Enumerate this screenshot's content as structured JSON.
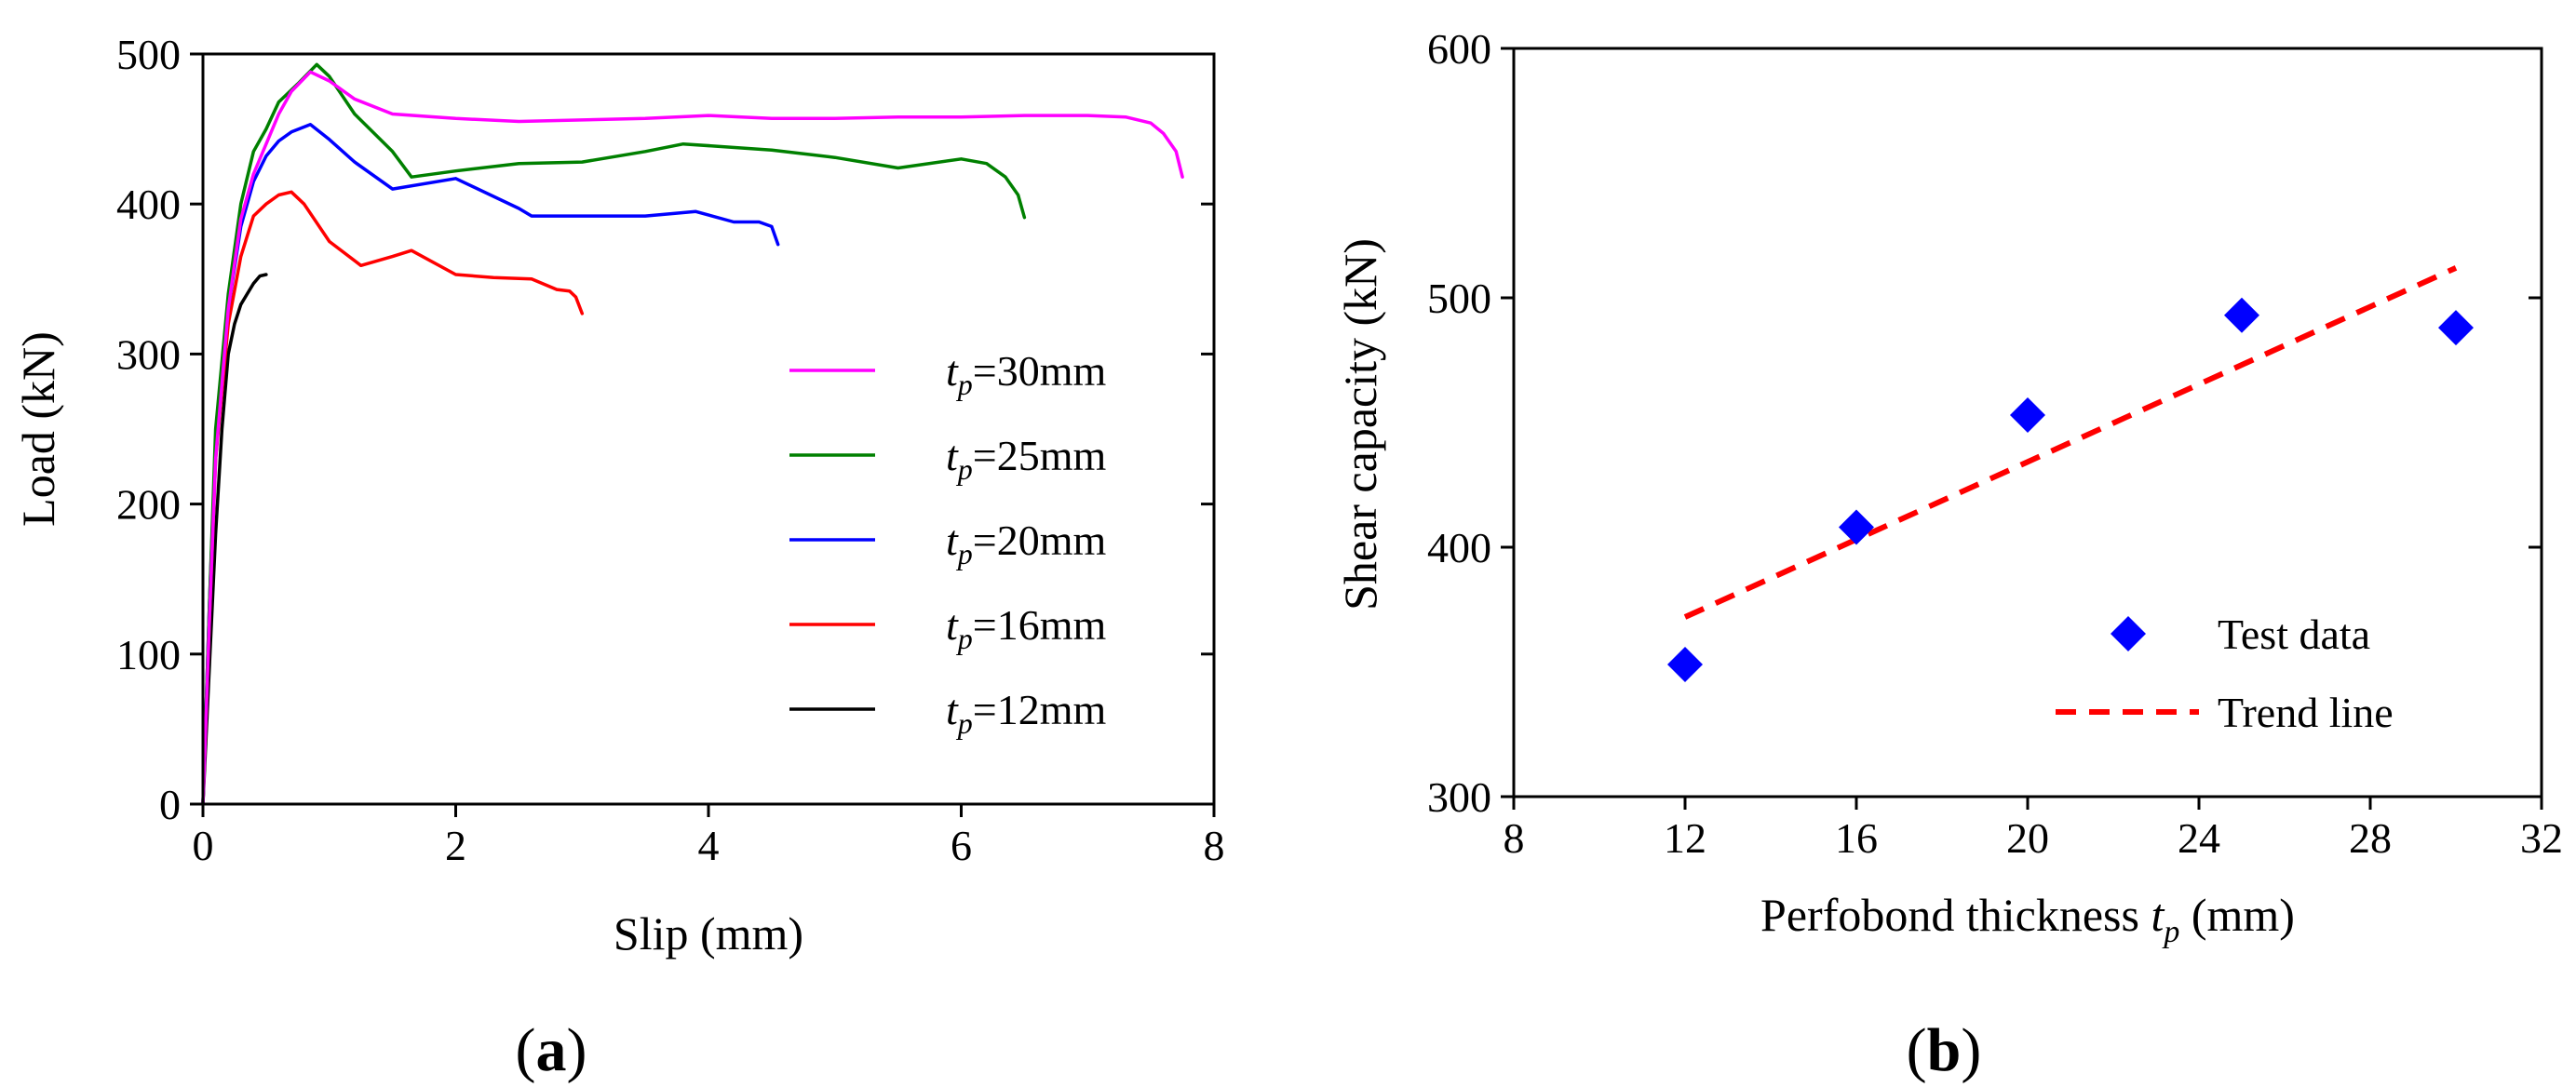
{
  "chart_data": [
    {
      "type": "line",
      "panel": "a",
      "panel_label": {
        "open": "(",
        "letter": "a",
        "close": ")"
      },
      "xlabel": "Slip (mm)",
      "ylabel": "Load (kN)",
      "xlim": [
        0,
        8
      ],
      "ylim": [
        0,
        500
      ],
      "xticks": [
        0,
        2,
        4,
        6,
        8
      ],
      "yticks": [
        0,
        100,
        200,
        300,
        400,
        500
      ],
      "legend_position": "right",
      "series": [
        {
          "name": "t_p=30mm",
          "label_main": "t",
          "label_sub": "p",
          "label_rest": "=30mm",
          "color": "#ff00ff",
          "points": [
            [
              0,
              0
            ],
            [
              0.05,
              120
            ],
            [
              0.1,
              230
            ],
            [
              0.2,
              330
            ],
            [
              0.3,
              390
            ],
            [
              0.4,
              420
            ],
            [
              0.5,
              440
            ],
            [
              0.6,
              460
            ],
            [
              0.7,
              475
            ],
            [
              0.85,
              488
            ],
            [
              1.0,
              482
            ],
            [
              1.2,
              470
            ],
            [
              1.5,
              460
            ],
            [
              2.0,
              457
            ],
            [
              2.5,
              455
            ],
            [
              3.0,
              456
            ],
            [
              3.5,
              457
            ],
            [
              4.0,
              459
            ],
            [
              4.5,
              457
            ],
            [
              5.0,
              457
            ],
            [
              5.5,
              458
            ],
            [
              6.0,
              458
            ],
            [
              6.5,
              459
            ],
            [
              7.0,
              459
            ],
            [
              7.3,
              458
            ],
            [
              7.5,
              454
            ],
            [
              7.6,
              447
            ],
            [
              7.7,
              435
            ],
            [
              7.75,
              418
            ]
          ]
        },
        {
          "name": "t_p=25mm",
          "label_main": "t",
          "label_sub": "p",
          "label_rest": "=25mm",
          "color": "#008000",
          "points": [
            [
              0,
              0
            ],
            [
              0.05,
              130
            ],
            [
              0.1,
              250
            ],
            [
              0.2,
              340
            ],
            [
              0.3,
              400
            ],
            [
              0.4,
              435
            ],
            [
              0.5,
              450
            ],
            [
              0.6,
              468
            ],
            [
              0.75,
              480
            ],
            [
              0.9,
              493
            ],
            [
              1.0,
              485
            ],
            [
              1.2,
              460
            ],
            [
              1.5,
              435
            ],
            [
              1.65,
              418
            ],
            [
              2.0,
              422
            ],
            [
              2.5,
              427
            ],
            [
              3.0,
              428
            ],
            [
              3.5,
              435
            ],
            [
              3.8,
              440
            ],
            [
              4.5,
              436
            ],
            [
              5.0,
              431
            ],
            [
              5.5,
              424
            ],
            [
              6.0,
              430
            ],
            [
              6.2,
              427
            ],
            [
              6.35,
              418
            ],
            [
              6.45,
              406
            ],
            [
              6.5,
              391
            ]
          ]
        },
        {
          "name": "t_p=20mm",
          "label_main": "t",
          "label_sub": "p",
          "label_rest": "=20mm",
          "color": "#0000ff",
          "points": [
            [
              0,
              0
            ],
            [
              0.05,
              130
            ],
            [
              0.1,
              240
            ],
            [
              0.2,
              330
            ],
            [
              0.3,
              385
            ],
            [
              0.4,
              415
            ],
            [
              0.5,
              432
            ],
            [
              0.6,
              442
            ],
            [
              0.7,
              448
            ],
            [
              0.85,
              453
            ],
            [
              1.0,
              443
            ],
            [
              1.2,
              428
            ],
            [
              1.5,
              410
            ],
            [
              2.0,
              417
            ],
            [
              2.5,
              397
            ],
            [
              2.6,
              392
            ],
            [
              3.0,
              392
            ],
            [
              3.5,
              392
            ],
            [
              3.9,
              395
            ],
            [
              4.2,
              388
            ],
            [
              4.4,
              388
            ],
            [
              4.5,
              385
            ],
            [
              4.55,
              373
            ]
          ]
        },
        {
          "name": "t_p=16mm",
          "label_main": "t",
          "label_sub": "p",
          "label_rest": "=16mm",
          "color": "#ff0000",
          "points": [
            [
              0,
              0
            ],
            [
              0.05,
              120
            ],
            [
              0.1,
              230
            ],
            [
              0.2,
              320
            ],
            [
              0.3,
              365
            ],
            [
              0.4,
              392
            ],
            [
              0.5,
              400
            ],
            [
              0.6,
              406
            ],
            [
              0.7,
              408
            ],
            [
              0.8,
              400
            ],
            [
              1.0,
              375
            ],
            [
              1.25,
              359
            ],
            [
              1.5,
              365
            ],
            [
              1.65,
              369
            ],
            [
              2.0,
              353
            ],
            [
              2.3,
              351
            ],
            [
              2.6,
              350
            ],
            [
              2.8,
              343
            ],
            [
              2.9,
              342
            ],
            [
              2.95,
              338
            ],
            [
              3.0,
              327
            ]
          ]
        },
        {
          "name": "t_p=12mm",
          "label_main": "t",
          "label_sub": "p",
          "label_rest": "=12mm",
          "color": "#000000",
          "points": [
            [
              0,
              0
            ],
            [
              0.05,
              90
            ],
            [
              0.1,
              180
            ],
            [
              0.15,
              250
            ],
            [
              0.2,
              300
            ],
            [
              0.25,
              320
            ],
            [
              0.3,
              333
            ],
            [
              0.35,
              340
            ],
            [
              0.4,
              347
            ],
            [
              0.45,
              352
            ],
            [
              0.5,
              353
            ]
          ]
        }
      ]
    },
    {
      "type": "scatter",
      "panel": "b",
      "panel_label": {
        "open": "(",
        "letter": "b",
        "close": ")"
      },
      "xlabel_main": "Perfobond thickness ",
      "xlabel_var": "t",
      "xlabel_sub": "p",
      "xlabel_unit": " (mm)",
      "ylabel": "Shear capacity (kN)",
      "xlim": [
        8,
        32
      ],
      "ylim": [
        300,
        600
      ],
      "xticks": [
        8,
        12,
        16,
        20,
        24,
        28,
        32
      ],
      "yticks": [
        300,
        400,
        500,
        600
      ],
      "legend_position": "bottom-right",
      "series": [
        {
          "name": "Test data",
          "color": "#0000ff",
          "marker": "diamond",
          "x": [
            12,
            16,
            20,
            25,
            30
          ],
          "y": [
            353,
            408,
            453,
            493,
            488
          ]
        },
        {
          "name": "Trend line",
          "color": "#ff0000",
          "style": "dashed",
          "x": [
            12,
            30
          ],
          "y": [
            372,
            512
          ]
        }
      ]
    }
  ]
}
